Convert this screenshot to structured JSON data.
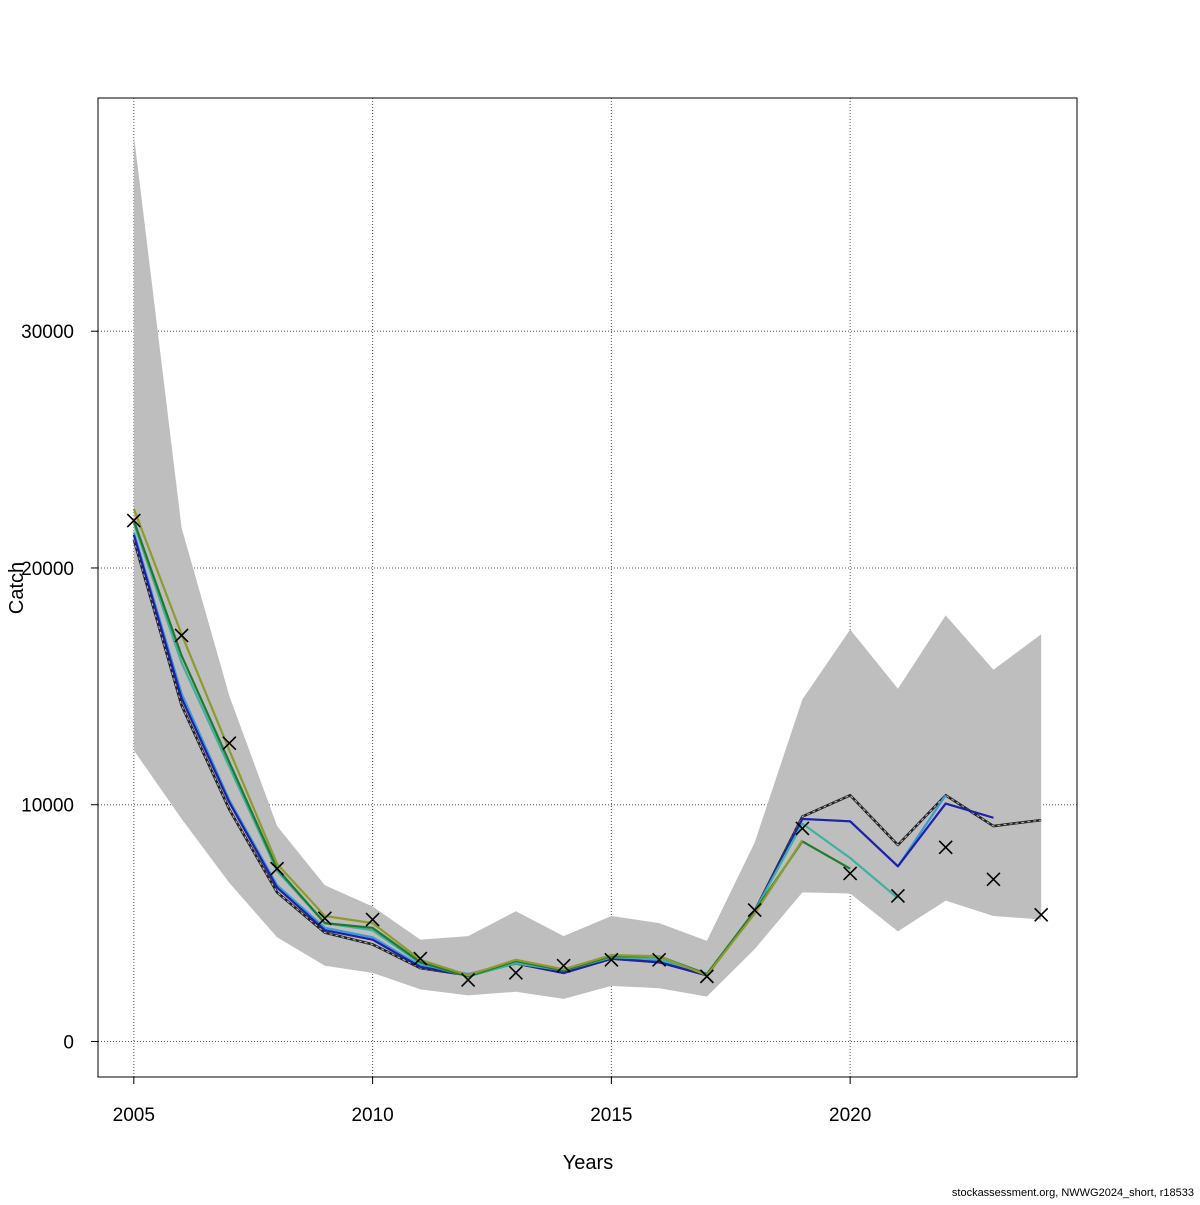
{
  "chart_data": {
    "type": "line",
    "xlabel": "Years",
    "ylabel": "Catch",
    "xlim": [
      2004.25,
      2024.75
    ],
    "ylim": [
      -1500,
      39850
    ],
    "xticks": [
      2005,
      2010,
      2015,
      2020
    ],
    "xtick_labels": [
      "2005",
      "2010",
      "2015",
      "2020"
    ],
    "yticks": [
      0,
      10000,
      20000,
      30000
    ],
    "ytick_labels": [
      "0",
      "10000",
      "20000",
      "30000"
    ],
    "grid": true,
    "band": {
      "color": "#bebebe",
      "x": [
        2005,
        2006,
        2007,
        2008,
        2009,
        2010,
        2011,
        2012,
        2013,
        2014,
        2015,
        2016,
        2017,
        2018,
        2019,
        2020,
        2021,
        2022,
        2023,
        2024
      ],
      "upper": [
        38300,
        21700,
        14600,
        9100,
        6600,
        5700,
        4300,
        4450,
        5500,
        4450,
        5300,
        5000,
        4250,
        8400,
        14450,
        17400,
        14900,
        18000,
        15700,
        17200
      ],
      "lower": [
        12300,
        9400,
        6700,
        4400,
        3200,
        2900,
        2200,
        1950,
        2100,
        1800,
        2350,
        2250,
        1900,
        3900,
        6300,
        6250,
        4650,
        5950,
        5300,
        5150
      ]
    },
    "observed": {
      "marker": "x",
      "color": "#000000",
      "x": [
        2005,
        2006,
        2007,
        2008,
        2009,
        2010,
        2011,
        2012,
        2013,
        2014,
        2015,
        2016,
        2017,
        2018,
        2019,
        2020,
        2021,
        2022,
        2023,
        2024
      ],
      "y": [
        22000,
        17150,
        12600,
        7300,
        5200,
        5150,
        3500,
        2600,
        2900,
        3200,
        3450,
        3450,
        2750,
        5550,
        9000,
        7100,
        6150,
        8200,
        6850,
        5350
      ]
    },
    "series": [
      {
        "color": "#222222",
        "dashed": true,
        "x": [
          2005,
          2006,
          2007,
          2008,
          2009,
          2010,
          2011,
          2012,
          2013,
          2014,
          2015,
          2016,
          2017,
          2018,
          2019,
          2020,
          2021,
          2022,
          2023,
          2024
        ],
        "y": [
          21200,
          14200,
          9800,
          6300,
          4600,
          4100,
          3100,
          2800,
          3300,
          2900,
          3500,
          3350,
          2800,
          5500,
          9500,
          10400,
          8300,
          10400,
          9100,
          9350
        ]
      },
      {
        "color": "#3a9ad9",
        "x": [
          2005,
          2006,
          2007,
          2008,
          2009,
          2010,
          2011,
          2012,
          2013,
          2014,
          2015,
          2016,
          2017,
          2018,
          2019,
          2020,
          2021,
          2022
        ],
        "y": [
          21500,
          14700,
          10200,
          6600,
          4800,
          4400,
          3200,
          2850,
          3350,
          2950,
          3500,
          3400,
          2800,
          5500,
          9400,
          9300,
          7400,
          10400
        ]
      },
      {
        "color": "#1f1fa8",
        "x": [
          2005,
          2006,
          2007,
          2008,
          2009,
          2010,
          2011,
          2012,
          2013,
          2014,
          2015,
          2016,
          2017,
          2018,
          2019,
          2020,
          2021,
          2022,
          2023
        ],
        "y": [
          21400,
          14500,
          10100,
          6500,
          4700,
          4300,
          3150,
          2800,
          3300,
          2900,
          3500,
          3350,
          2800,
          5500,
          9400,
          9300,
          7400,
          10050,
          9450
        ]
      },
      {
        "color": "#40b0a0",
        "x": [
          2005,
          2006,
          2007,
          2008,
          2009,
          2010,
          2011,
          2012,
          2013,
          2014,
          2015,
          2016,
          2017,
          2018,
          2019,
          2020,
          2021
        ],
        "y": [
          21900,
          16000,
          11600,
          7200,
          5000,
          4700,
          3300,
          2750,
          3300,
          3000,
          3550,
          3500,
          2850,
          5500,
          9200,
          7750,
          6050
        ]
      },
      {
        "color": "#1f7a2e",
        "x": [
          2005,
          2006,
          2007,
          2008,
          2009,
          2010,
          2011,
          2012,
          2013,
          2014,
          2015,
          2016,
          2017,
          2018,
          2019,
          2020
        ],
        "y": [
          22000,
          16300,
          11800,
          7300,
          5000,
          4800,
          3350,
          2750,
          3400,
          3000,
          3600,
          3600,
          2850,
          5500,
          8450,
          7300
        ]
      },
      {
        "color": "#8f9a2e",
        "x": [
          2005,
          2006,
          2007,
          2008,
          2009,
          2010,
          2011,
          2012,
          2013,
          2014,
          2015,
          2016,
          2017,
          2018,
          2019
        ],
        "y": [
          22500,
          17200,
          12300,
          7500,
          5300,
          5000,
          3450,
          2800,
          3450,
          3050,
          3650,
          3600,
          2800,
          5400,
          8500
        ]
      }
    ]
  },
  "footer": {
    "credit": "stockassessment.org, NWWG2024_short, r18533"
  }
}
